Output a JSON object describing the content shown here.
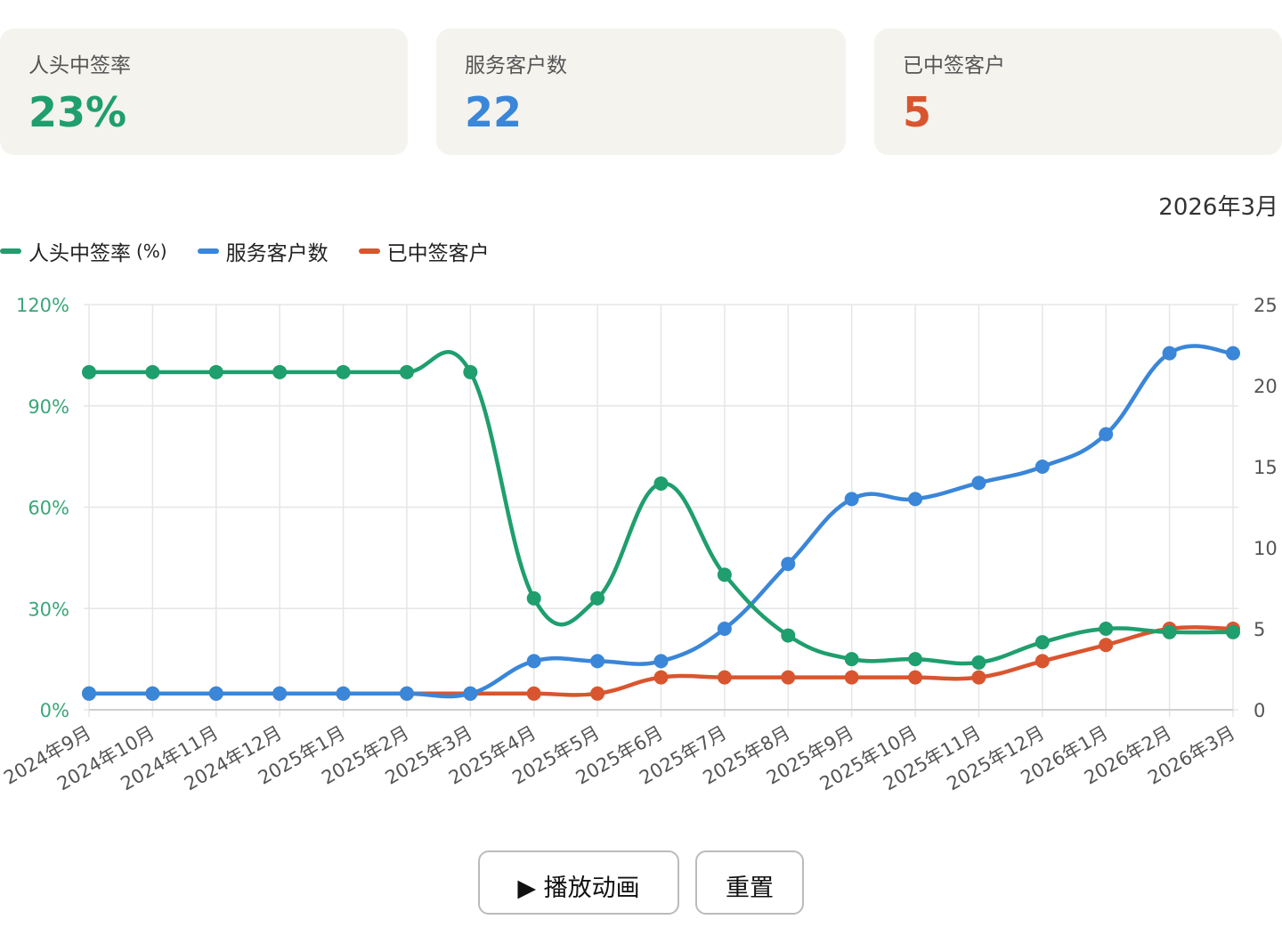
{
  "kpis": [
    {
      "label": "人头中签率",
      "value": "23%",
      "color": "#1f9e6e"
    },
    {
      "label": "服务客户数",
      "value": "22",
      "color": "#3a86d8"
    },
    {
      "label": "已中签客户",
      "value": "5",
      "color": "#d9552f"
    }
  ],
  "period_label": "2026年3月",
  "legend": [
    {
      "label": "人头中签率",
      "unit": "(%)",
      "color": "#1f9e6e"
    },
    {
      "label": "服务客户数",
      "unit": "",
      "color": "#3a86d8"
    },
    {
      "label": "已中签客户",
      "unit": "",
      "color": "#d9552f"
    }
  ],
  "buttons": {
    "play": "▶ 播放动画",
    "reset": "重置"
  },
  "chart_data": {
    "type": "line",
    "categories": [
      "2024年9月",
      "2024年10月",
      "2024年11月",
      "2024年12月",
      "2025年1月",
      "2025年2月",
      "2025年3月",
      "2025年4月",
      "2025年5月",
      "2025年6月",
      "2025年7月",
      "2025年8月",
      "2025年9月",
      "2025年10月",
      "2025年11月",
      "2025年12月",
      "2026年1月",
      "2026年2月",
      "2026年3月"
    ],
    "series": [
      {
        "name": "人头中签率 (%)",
        "axis": "left",
        "color": "#1f9e6e",
        "values": [
          100,
          100,
          100,
          100,
          100,
          100,
          100,
          33,
          33,
          67,
          40,
          22,
          15,
          15,
          14,
          20,
          24,
          23,
          23
        ]
      },
      {
        "name": "服务客户数",
        "axis": "right",
        "color": "#3a86d8",
        "values": [
          1,
          1,
          1,
          1,
          1,
          1,
          1,
          3,
          3,
          3,
          5,
          9,
          13,
          13,
          14,
          15,
          17,
          22,
          22
        ]
      },
      {
        "name": "已中签客户",
        "axis": "right",
        "color": "#d9552f",
        "values": [
          1,
          1,
          1,
          1,
          1,
          1,
          1,
          1,
          1,
          2,
          2,
          2,
          2,
          2,
          2,
          3,
          4,
          5,
          5
        ]
      }
    ],
    "y_left": {
      "min": 0,
      "max": 120,
      "ticks": [
        "0%",
        "30%",
        "60%",
        "90%",
        "120%"
      ],
      "tick_color": "#3aa77a"
    },
    "y_right": {
      "min": 0,
      "max": 25,
      "ticks": [
        "0",
        "5",
        "10",
        "15",
        "20",
        "25"
      ],
      "tick_color": "#555555"
    },
    "grid": true,
    "legend_position": "top-left"
  }
}
